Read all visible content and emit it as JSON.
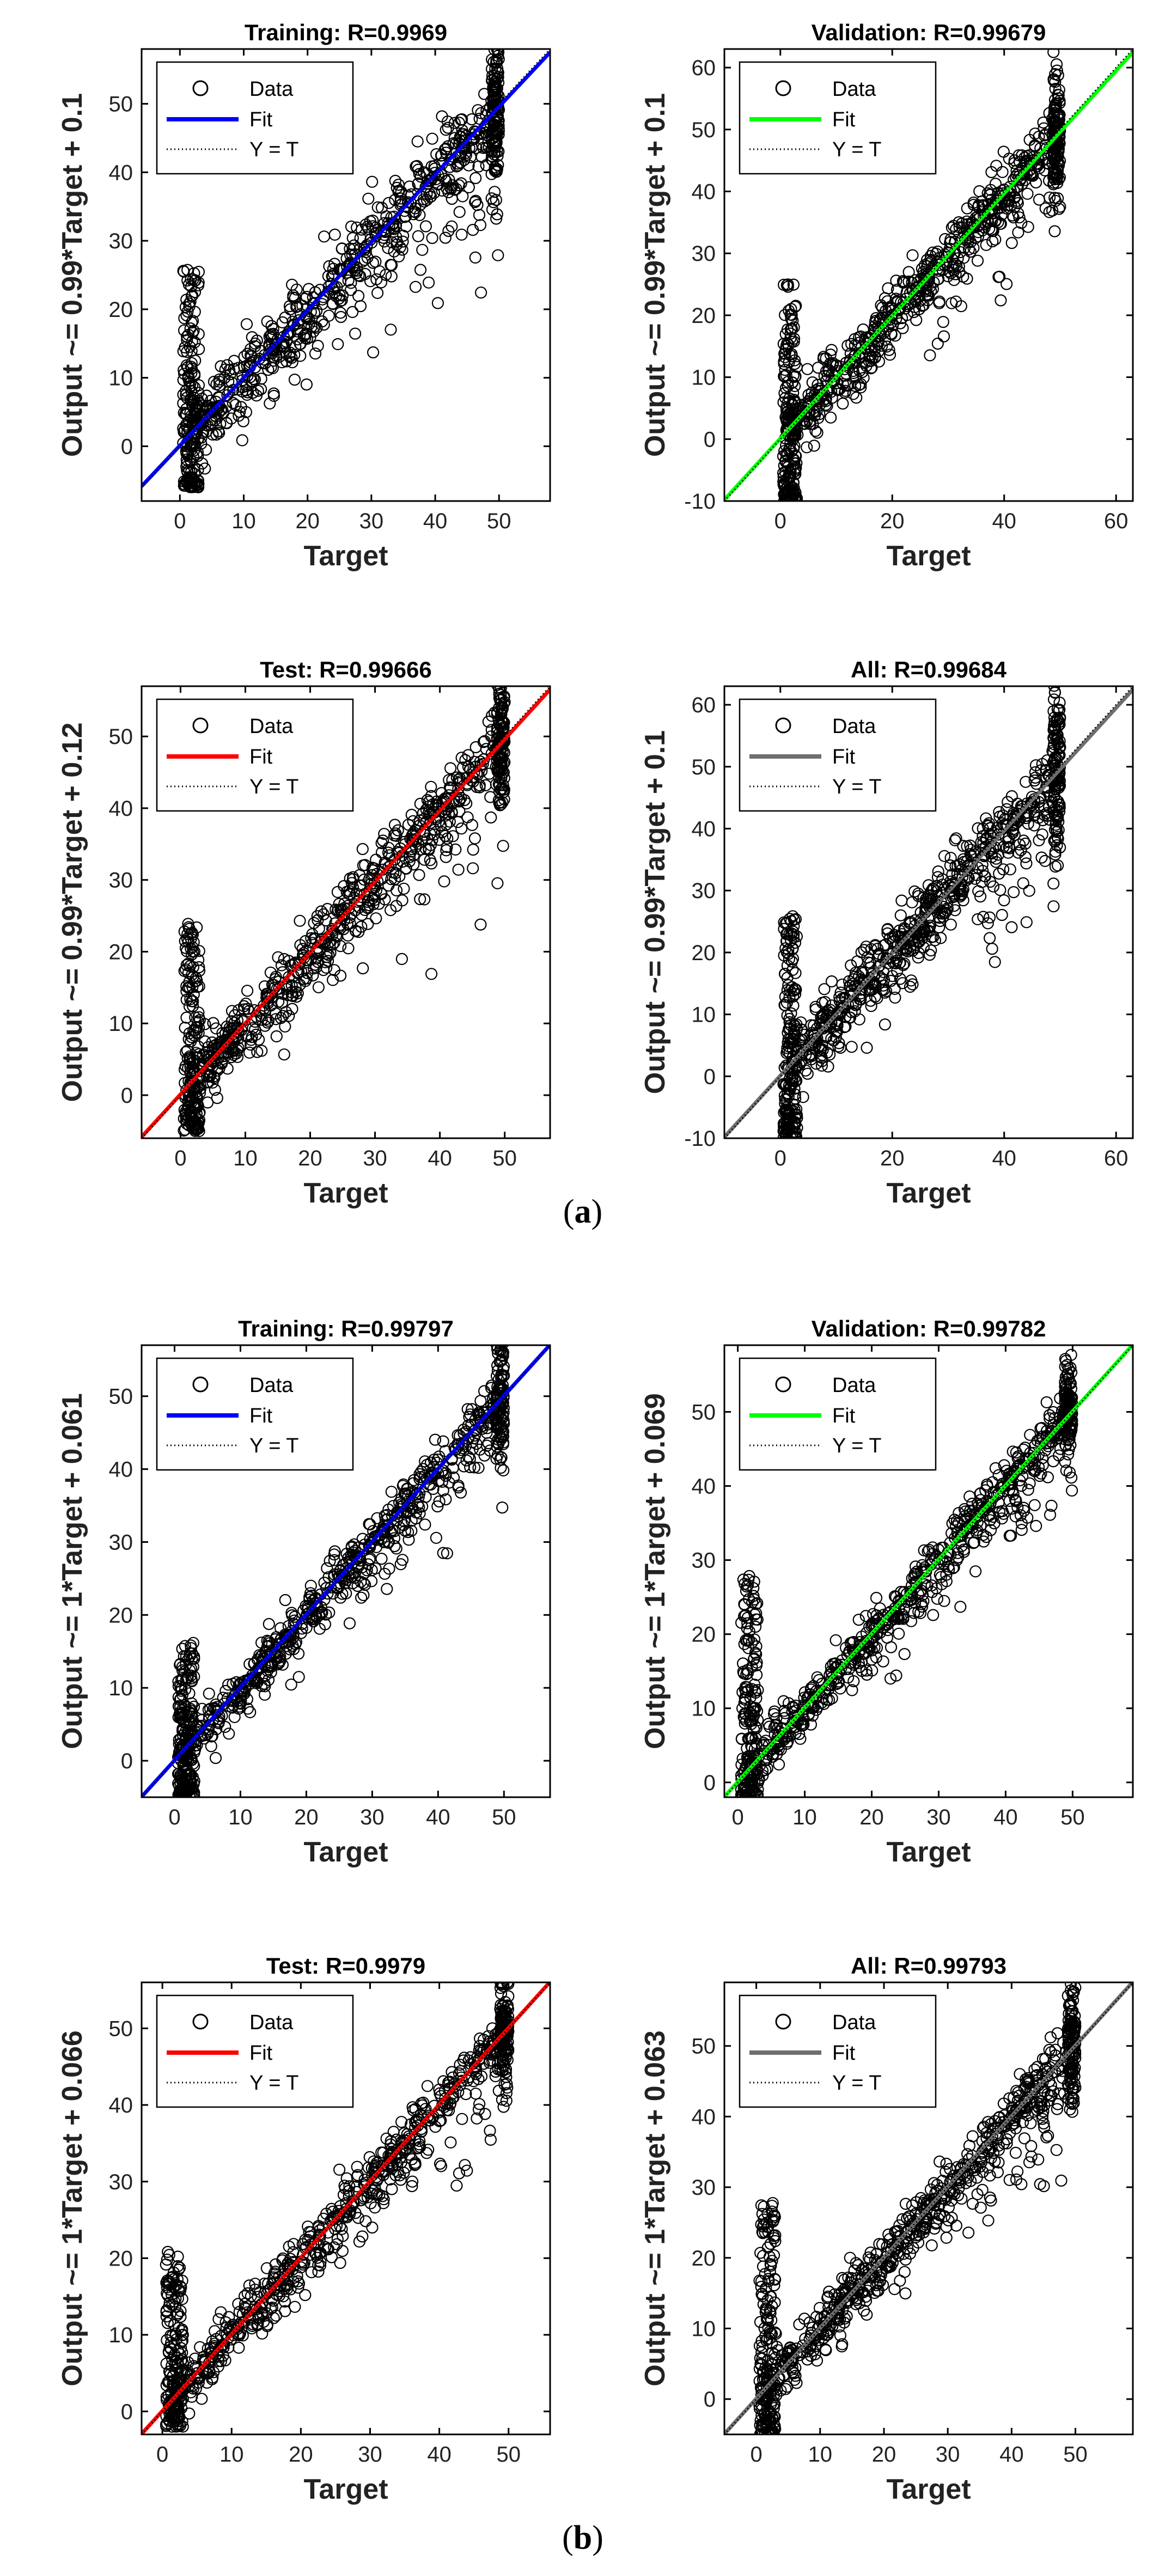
{
  "figure": {
    "sub_labels": [
      {
        "text": "(",
        "bold": "a",
        "close": ")"
      },
      {
        "text": "(",
        "bold": "b",
        "close": ")"
      }
    ]
  },
  "legend": {
    "data": "Data",
    "fit": "Fit",
    "yt": "Y = T"
  },
  "colors": {
    "blue": "#0000ff",
    "green": "#00ff00",
    "red": "#ff0000",
    "gray": "#6e6e6e"
  },
  "chart_data": [
    {
      "type": "scatter",
      "title": "Training: R=0.9969",
      "xlabel": "Target",
      "ylabel": "Output ~= 0.99*Target + 0.1",
      "xlim": [
        -6,
        58
      ],
      "ylim": [
        -8,
        58
      ],
      "xticks": [
        0,
        10,
        20,
        30,
        40,
        50
      ],
      "yticks": [
        0,
        10,
        20,
        30,
        40,
        50
      ],
      "fit": {
        "slope": 0.99,
        "intercept": 0.1,
        "color": "blue"
      },
      "x_max": 50,
      "spread": 6,
      "noise_seed": 11,
      "vertical_cluster": [
        -6,
        26
      ],
      "legend": {
        "data": "Data",
        "fit": "Fit",
        "identity": "Y = T"
      }
    },
    {
      "type": "scatter",
      "title": "Validation: R=0.99679",
      "xlabel": "Target",
      "ylabel": "Output ~= 0.99*Target + 0.1",
      "xlim": [
        -10,
        63
      ],
      "ylim": [
        -10,
        63
      ],
      "xticks": [
        0,
        20,
        40,
        60
      ],
      "yticks": [
        -10,
        0,
        10,
        20,
        30,
        40,
        50,
        60
      ],
      "fit": {
        "slope": 0.99,
        "intercept": 0.1,
        "color": "green"
      },
      "x_max": 50,
      "spread": 5,
      "noise_seed": 23,
      "vertical_cluster": [
        -10,
        25
      ],
      "legend": {
        "data": "Data",
        "fit": "Fit",
        "identity": "Y = T"
      }
    },
    {
      "type": "scatter",
      "title": "Test: R=0.99666",
      "xlabel": "Target",
      "ylabel": "Output ~= 0.99*Target + 0.12",
      "xlim": [
        -6,
        57
      ],
      "ylim": [
        -6,
        57
      ],
      "xticks": [
        0,
        10,
        20,
        30,
        40,
        50
      ],
      "yticks": [
        0,
        10,
        20,
        30,
        40,
        50
      ],
      "fit": {
        "slope": 0.99,
        "intercept": 0.12,
        "color": "red"
      },
      "x_max": 50,
      "spread": 5,
      "noise_seed": 37,
      "vertical_cluster": [
        -5,
        24
      ],
      "legend": {
        "data": "Data",
        "fit": "Fit",
        "identity": "Y = T"
      }
    },
    {
      "type": "scatter",
      "title": "All: R=0.99684",
      "xlabel": "Target",
      "ylabel": "Output ~= 0.99*Target + 0.1",
      "xlim": [
        -10,
        63
      ],
      "ylim": [
        -10,
        63
      ],
      "xticks": [
        0,
        20,
        40,
        60
      ],
      "yticks": [
        -10,
        0,
        10,
        20,
        30,
        40,
        50,
        60
      ],
      "fit": {
        "slope": 0.99,
        "intercept": 0.1,
        "color": "gray"
      },
      "x_max": 50,
      "spread": 6,
      "noise_seed": 41,
      "vertical_cluster": [
        -10,
        26
      ],
      "legend": {
        "data": "Data",
        "fit": "Fit",
        "identity": "Y = T"
      }
    },
    {
      "type": "scatter",
      "title": "Training: R=0.99797",
      "xlabel": "Target",
      "ylabel": "Output ~= 1*Target + 0.061",
      "xlim": [
        -5,
        57
      ],
      "ylim": [
        -5,
        57
      ],
      "xticks": [
        0,
        10,
        20,
        30,
        40,
        50
      ],
      "yticks": [
        0,
        10,
        20,
        30,
        40,
        50
      ],
      "fit": {
        "slope": 1,
        "intercept": 0.061,
        "color": "blue"
      },
      "x_max": 50,
      "spread": 4,
      "noise_seed": 53,
      "vertical_cluster": [
        -5,
        17
      ],
      "legend": {
        "data": "Data",
        "fit": "Fit",
        "identity": "Y = T"
      }
    },
    {
      "type": "scatter",
      "title": "Validation: R=0.99782",
      "xlabel": "Target",
      "ylabel": "Output ~= 1*Target + 0.069",
      "xlim": [
        -2,
        59
      ],
      "ylim": [
        -2,
        59
      ],
      "xticks": [
        0,
        10,
        20,
        30,
        40,
        50
      ],
      "yticks": [
        0,
        10,
        20,
        30,
        40,
        50
      ],
      "fit": {
        "slope": 1,
        "intercept": 0.069,
        "color": "green"
      },
      "x_max": 50,
      "spread": 3.5,
      "noise_seed": 61,
      "vertical_cluster": [
        -2,
        28
      ],
      "legend": {
        "data": "Data",
        "fit": "Fit",
        "identity": "Y = T"
      }
    },
    {
      "type": "scatter",
      "title": "Test: R=0.9979",
      "xlabel": "Target",
      "ylabel": "Output ~= 1*Target + 0.066",
      "xlim": [
        -3,
        56
      ],
      "ylim": [
        -3,
        56
      ],
      "xticks": [
        0,
        10,
        20,
        30,
        40,
        50
      ],
      "yticks": [
        0,
        10,
        20,
        30,
        40,
        50
      ],
      "fit": {
        "slope": 1,
        "intercept": 0.066,
        "color": "red"
      },
      "x_max": 50,
      "spread": 3.5,
      "noise_seed": 71,
      "vertical_cluster": [
        -2,
        21
      ],
      "legend": {
        "data": "Data",
        "fit": "Fit",
        "identity": "Y = T"
      }
    },
    {
      "type": "scatter",
      "title": "All: R=0.99793",
      "xlabel": "Target",
      "ylabel": "Output ~= 1*Target + 0.063",
      "xlim": [
        -5,
        59
      ],
      "ylim": [
        -5,
        59
      ],
      "xticks": [
        0,
        10,
        20,
        30,
        40,
        50
      ],
      "yticks": [
        0,
        10,
        20,
        30,
        40,
        50
      ],
      "fit": {
        "slope": 1,
        "intercept": 0.063,
        "color": "gray"
      },
      "x_max": 50,
      "spread": 4,
      "noise_seed": 83,
      "vertical_cluster": [
        -5,
        28
      ],
      "legend": {
        "data": "Data",
        "fit": "Fit",
        "identity": "Y = T"
      }
    }
  ]
}
